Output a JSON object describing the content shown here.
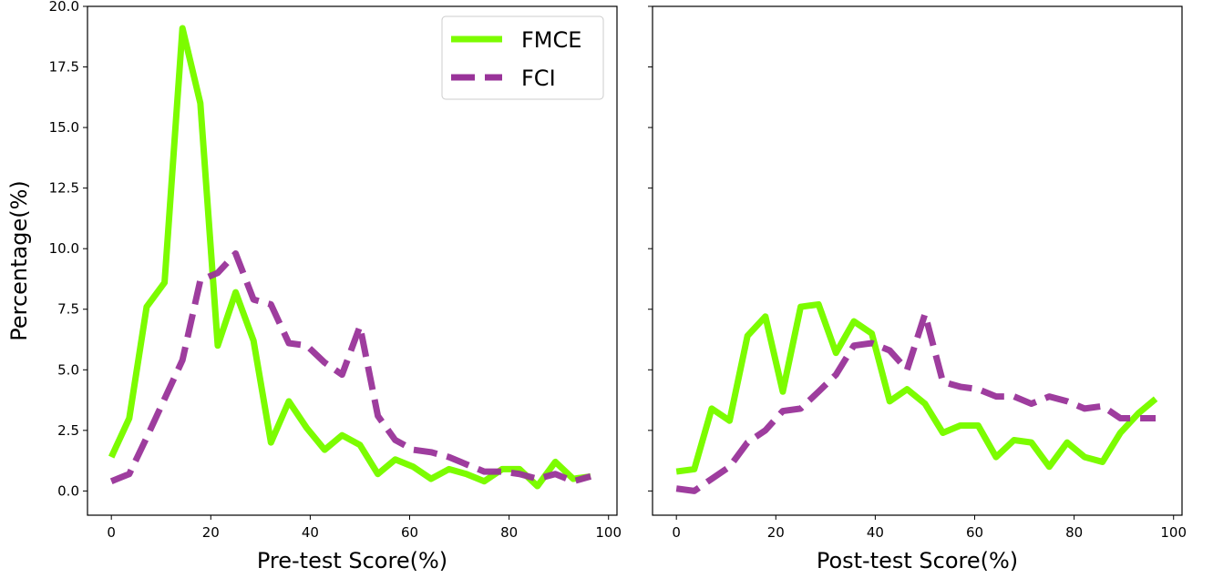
{
  "chart_data": [
    {
      "type": "line",
      "xlabel": "Pre-test Score(%)",
      "ylabel": "Percentage(%)",
      "xlim": [
        -4.8,
        101.7
      ],
      "ylim": [
        -1.0,
        20.0
      ],
      "xticks": [
        0,
        20,
        40,
        60,
        80,
        100
      ],
      "yticks": [
        0.0,
        2.5,
        5.0,
        7.5,
        10.0,
        12.5,
        15.0,
        17.5,
        20.0
      ],
      "ytick_labels": [
        "0.0",
        "2.5",
        "5.0",
        "7.5",
        "10.0",
        "12.5",
        "15.0",
        "17.5",
        "20.0"
      ],
      "legend": {
        "position": "top-right",
        "entries": [
          "FMCE",
          "FCI"
        ]
      },
      "series": [
        {
          "name": "FMCE",
          "color": "#7cfc00",
          "style": "solid",
          "x": [
            0,
            3.6,
            7.1,
            10.7,
            14.3,
            17.9,
            21.4,
            25,
            28.6,
            32.1,
            35.7,
            39.3,
            42.9,
            46.4,
            50,
            53.6,
            57.1,
            60.7,
            64.3,
            67.9,
            71.4,
            75,
            78.6,
            82.1,
            85.7,
            89.3,
            92.9,
            96.4
          ],
          "y": [
            1.4,
            3.0,
            7.6,
            8.6,
            19.1,
            16.0,
            6.0,
            8.2,
            6.2,
            2.0,
            3.7,
            2.6,
            1.7,
            2.3,
            1.9,
            0.7,
            1.3,
            1.0,
            0.5,
            0.9,
            0.7,
            0.4,
            0.9,
            0.9,
            0.2,
            1.2,
            0.5,
            0.6
          ]
        },
        {
          "name": "FCI",
          "color": "#993399",
          "style": "dashed",
          "x": [
            0,
            3.6,
            7.1,
            10.7,
            14.3,
            17.9,
            21.4,
            25,
            28.6,
            32.1,
            35.7,
            39.3,
            42.9,
            46.4,
            50,
            53.6,
            57.1,
            60.7,
            64.3,
            67.9,
            71.4,
            75,
            78.6,
            82.1,
            85.7,
            89.3,
            92.9,
            96.4
          ],
          "y": [
            0.4,
            0.7,
            2.2,
            3.8,
            5.4,
            8.7,
            9.0,
            9.8,
            7.9,
            7.7,
            6.1,
            6.0,
            5.3,
            4.8,
            6.8,
            3.1,
            2.1,
            1.7,
            1.6,
            1.4,
            1.1,
            0.8,
            0.8,
            0.7,
            0.5,
            0.7,
            0.4,
            0.6
          ]
        }
      ]
    },
    {
      "type": "line",
      "xlabel": "Post-test Score(%)",
      "ylabel": "",
      "xlim": [
        -4.8,
        101.7
      ],
      "ylim": [
        -1.0,
        20.0
      ],
      "xticks": [
        0,
        20,
        40,
        60,
        80,
        100
      ],
      "yticks": [
        0.0,
        2.5,
        5.0,
        7.5,
        10.0,
        12.5,
        15.0,
        17.5,
        20.0
      ],
      "series": [
        {
          "name": "FMCE",
          "color": "#7cfc00",
          "style": "solid",
          "x": [
            0,
            3.6,
            7.1,
            10.7,
            14.3,
            17.9,
            21.4,
            25,
            28.6,
            32.1,
            35.7,
            39.3,
            42.9,
            46.4,
            50,
            53.6,
            57.1,
            60.7,
            64.3,
            67.9,
            71.4,
            75,
            78.6,
            82.1,
            85.7,
            89.3,
            92.9,
            96.4
          ],
          "y": [
            0.8,
            0.9,
            3.4,
            2.9,
            6.4,
            7.2,
            4.1,
            7.6,
            7.7,
            5.7,
            7.0,
            6.5,
            3.7,
            4.2,
            3.6,
            2.4,
            2.7,
            2.7,
            1.4,
            2.1,
            2.0,
            1.0,
            2.0,
            1.4,
            1.2,
            2.4,
            3.2,
            3.8
          ]
        },
        {
          "name": "FCI",
          "color": "#993399",
          "style": "dashed",
          "x": [
            0,
            3.6,
            7.1,
            10.7,
            14.3,
            17.9,
            21.4,
            25,
            28.6,
            32.1,
            35.7,
            39.3,
            42.9,
            46.4,
            50,
            53.6,
            57.1,
            60.7,
            64.3,
            67.9,
            71.4,
            75,
            78.6,
            82.1,
            85.7,
            89.3,
            92.9,
            96.4
          ],
          "y": [
            0.1,
            0.0,
            0.5,
            1.0,
            2.0,
            2.5,
            3.3,
            3.4,
            4.1,
            4.8,
            6.0,
            6.1,
            5.8,
            5.0,
            7.3,
            4.5,
            4.3,
            4.2,
            3.9,
            3.9,
            3.6,
            3.9,
            3.7,
            3.4,
            3.5,
            3.0,
            3.0,
            3.0
          ]
        }
      ]
    }
  ]
}
